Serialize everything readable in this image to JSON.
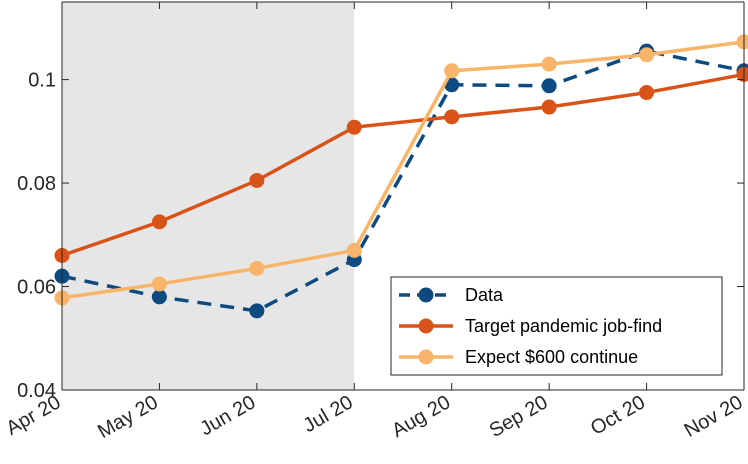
{
  "chart_data": {
    "type": "line",
    "categories": [
      "Apr 20",
      "May 20",
      "Jun 20",
      "Jul 20",
      "Aug 20",
      "Sep 20",
      "Oct 20",
      "Nov 20"
    ],
    "ylim": [
      0.04,
      0.115
    ],
    "yticks": [
      0.04,
      0.06,
      0.08,
      0.1
    ],
    "ytick_labels": [
      "0.04",
      "0.06",
      "0.08",
      "0.1"
    ],
    "shaded_region": {
      "from": "Apr 20",
      "to": "Jul 20",
      "color": "#e6e6e6"
    },
    "grid": false,
    "legend_position": "bottom-right",
    "series": [
      {
        "name": "Data",
        "color": "#0c4a80",
        "dash": "dashed",
        "values": [
          0.062,
          0.058,
          0.0553,
          0.0652,
          0.099,
          0.0988,
          0.1055,
          0.1017
        ]
      },
      {
        "name": "Target pandemic job-find",
        "color": "#d95319",
        "dash": "solid",
        "values": [
          0.066,
          0.0725,
          0.0805,
          0.0908,
          0.0928,
          0.0947,
          0.0975,
          0.101
        ]
      },
      {
        "name": "Expect $600 continue",
        "color": "#f8b468",
        "dash": "solid",
        "values": [
          0.0578,
          0.0605,
          0.0635,
          0.067,
          0.1017,
          0.103,
          0.1048,
          0.1073
        ]
      }
    ]
  }
}
